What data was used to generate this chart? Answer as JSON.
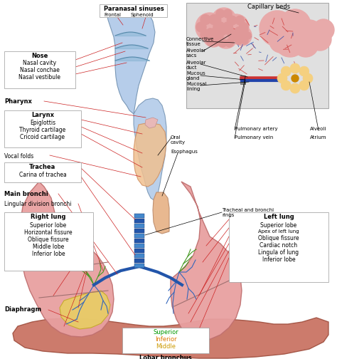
{
  "bg_color": "#ffffff",
  "fig_width": 4.74,
  "fig_height": 5.04,
  "dpi": 100,
  "labels": {
    "paranasal_sinuses": "Paranasal sinuses",
    "frontal": "Frontal",
    "sphenoid": "Sphenoid",
    "nose": "Nose",
    "nasal_cavity": "Nasal cavity",
    "nasal_conchae": "Nasal conchae",
    "nasal_vestibule": "Nasal vestibule",
    "pharynx": "Pharynx",
    "larynx": "Larynx",
    "epiglottis": "Epiglottis",
    "thyroid_cartilage": "Thyroid cartilage",
    "cricoid_cartilage": "Cricoid cartilage",
    "vocal_folds": "Vocal folds",
    "trachea": "Trachea",
    "carina_of_trachea": "Carina of trachea",
    "main_bronchi": "Main bronchi",
    "lingular_division": "Lingular division bronchi",
    "right_lung": "Right lung",
    "superior_lobe_r": "Superior lobe",
    "horizontal_fissure": "Horizontal fissure",
    "oblique_fissure_r": "Oblique fissure",
    "middle_lobe": "Middle lobe",
    "inferior_lobe_r": "Inferior lobe",
    "left_lung": "Left lung",
    "superior_lobe_l": "Superior lobe",
    "apex_left_lung": "Apex of left lung",
    "oblique_fissure_l": "Oblique fissure",
    "cardiac_notch": "Cardiac notch",
    "lingula_of_lung": "Lingula of lung",
    "inferior_lobe_l": "Inferior lobe",
    "diaphragm": "Diaphragm",
    "lobar_bronchus": "Lobar bronchus",
    "superior_color": "Superior",
    "inferior_color": "Inferior",
    "middle_color": "Middle",
    "capillary_beds": "Capillary beds",
    "connective_tissue": "Connective\ntissue",
    "alveolar_sacs": "Alveolar\nsacs",
    "alveolar_duct": "Alveolar\nduct",
    "mucous_gland": "Mucous\ngland",
    "mucosal_lining": "Mucosal\nlining",
    "oral_cavity": "Oral\ncavity",
    "esophagus": "Esophagus",
    "pulmonary_artery": "Pulmonary artery",
    "pulmonary_vein": "Pulmonary vein",
    "alveoli": "Alveoli",
    "atrium": "Atrium",
    "tracheal_bronchi_rings": "Tracheal and bronchi\nrings"
  },
  "colors": {
    "lung_pink": "#e8a0a0",
    "lung_edge": "#c07070",
    "diaphragm_fill": "#c87060",
    "diaphragm_edge": "#a05040",
    "trachea_dark": "#2255aa",
    "trachea_light": "#4488cc",
    "nose_fill": "#aec8e8",
    "nose_edge": "#7090b0",
    "throat_fill": "#d4a0c0",
    "throat_edge": "#b080a0",
    "oral_fill": "#f0c090",
    "oral_edge": "#d09060",
    "esoph_fill": "#e8b890",
    "esoph_edge": "#c09070",
    "capillary_pink": "#e8aaaa",
    "cap_red": "#cc3333",
    "cap_blue": "#2244aa",
    "alveoli_yellow": "#f5d080",
    "alveoli_edge": "#cc9900",
    "bronchi_green": "#449922",
    "bronchi_blue": "#3366bb",
    "bronchi_teal": "#227755",
    "yellow_lobe": "#e8d060",
    "yellow_edge": "#c0a820",
    "label_red": "#cc2222",
    "label_black": "#000000",
    "box_edge": "#999999",
    "sup_green": "#009900",
    "inf_orange": "#dd7700",
    "mid_gold": "#cc9900",
    "gray_box": "#e0e0e0",
    "gray_box_edge": "#aaaaaa"
  }
}
